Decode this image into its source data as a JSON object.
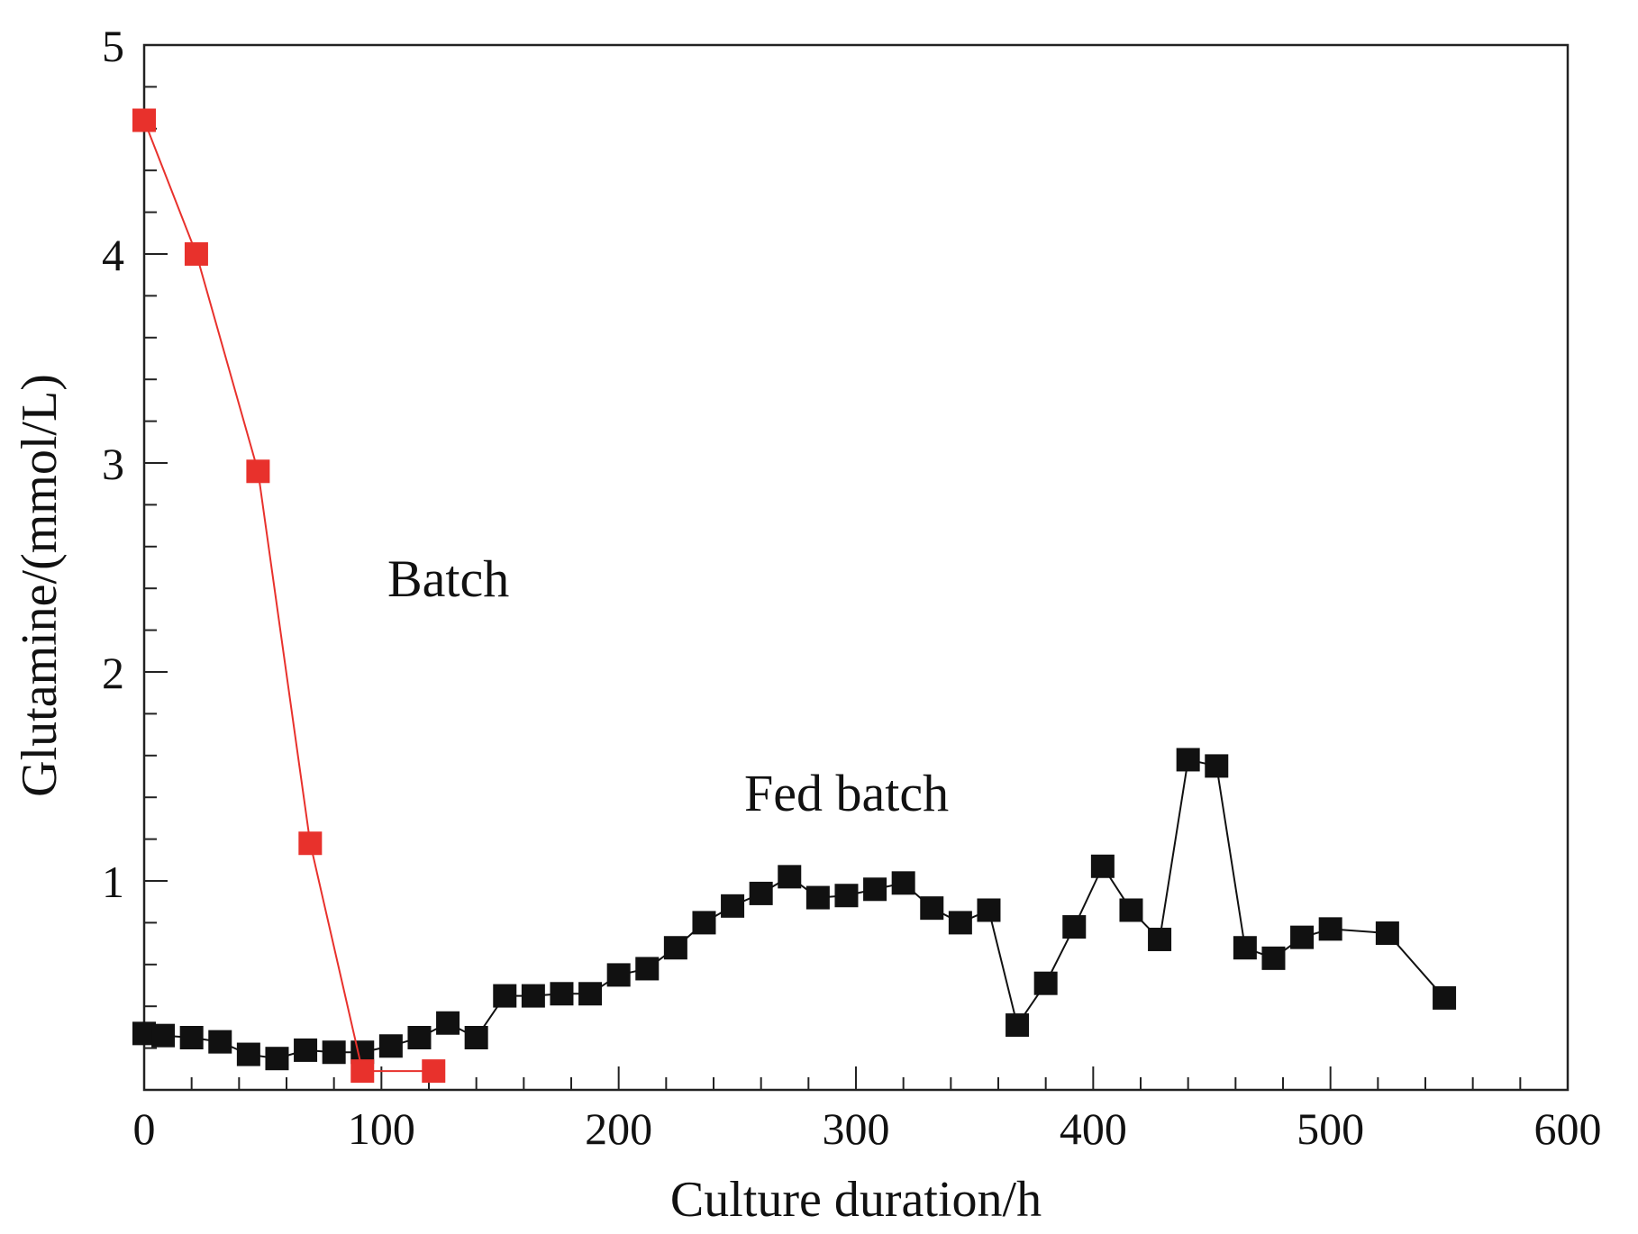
{
  "chart_data": {
    "type": "scatter",
    "xlabel": "Culture duration/h",
    "ylabel": "Glutamine/(mmol/L)",
    "xlim": [
      0,
      600
    ],
    "ylim": [
      0,
      5
    ],
    "x_ticks": [
      "0",
      "100",
      "200",
      "300",
      "400",
      "500",
      "600"
    ],
    "y_ticks": [
      "1",
      "2",
      "3",
      "4",
      "5"
    ],
    "grid": false,
    "legend": "none",
    "series": [
      {
        "name": "Batch",
        "color": "#e8312c",
        "marker": "square",
        "line": true,
        "x": [
          0,
          22,
          48,
          70,
          92,
          122
        ],
        "y": [
          4.64,
          4.0,
          2.96,
          1.18,
          0.09,
          0.09
        ]
      },
      {
        "name": "Fed batch",
        "color": "#111111",
        "marker": "square",
        "line": true,
        "x": [
          0,
          8,
          20,
          32,
          44,
          56,
          68,
          80,
          92,
          104,
          116,
          128,
          140,
          152,
          164,
          176,
          188,
          200,
          212,
          224,
          236,
          248,
          260,
          272,
          284,
          296,
          308,
          320,
          332,
          344,
          356,
          368,
          380,
          392,
          404,
          416,
          428,
          440,
          452,
          464,
          476,
          488,
          500,
          524,
          548
        ],
        "y": [
          0.27,
          0.26,
          0.25,
          0.23,
          0.17,
          0.15,
          0.19,
          0.18,
          0.18,
          0.21,
          0.25,
          0.32,
          0.25,
          0.45,
          0.45,
          0.46,
          0.46,
          0.55,
          0.58,
          0.68,
          0.8,
          0.88,
          0.94,
          1.02,
          0.92,
          0.93,
          0.96,
          0.99,
          0.87,
          0.8,
          0.86,
          0.31,
          0.51,
          0.78,
          1.07,
          0.86,
          0.72,
          1.58,
          1.55,
          0.68,
          0.63,
          0.73,
          0.77,
          0.75,
          0.44
        ]
      }
    ]
  }
}
